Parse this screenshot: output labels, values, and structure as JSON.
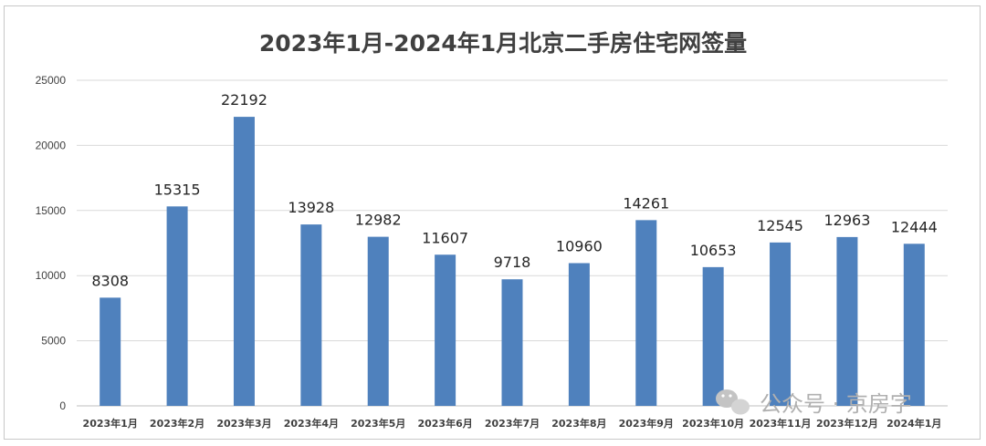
{
  "chart_data": {
    "type": "bar",
    "title": "2023年1月-2024年1月北京二手房住宅网签量",
    "categories": [
      "2023年1月",
      "2023年2月",
      "2023年3月",
      "2023年4月",
      "2023年5月",
      "2023年6月",
      "2023年7月",
      "2023年8月",
      "2023年9月",
      "2023年10月",
      "2023年11月",
      "2023年12月",
      "2024年1月"
    ],
    "values": [
      8308,
      15315,
      22192,
      13928,
      12982,
      11607,
      9718,
      10960,
      14261,
      10653,
      12545,
      12963,
      12444
    ],
    "ylim": [
      0,
      25000
    ],
    "yticks": [
      "0",
      "5000",
      "10000",
      "15000",
      "20000",
      "25000"
    ],
    "grid": true,
    "legend": "none",
    "bar_color": "#4f81bd"
  },
  "watermark": {
    "text": "公众号 · 京房字",
    "icon": "wechat-icon"
  }
}
